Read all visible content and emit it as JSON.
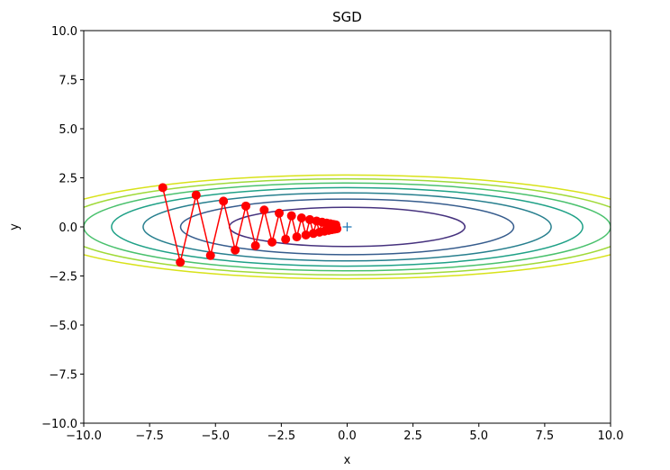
{
  "chart_data": {
    "type": "line",
    "title": "SGD",
    "xlabel": "x",
    "ylabel": "y",
    "xlim": [
      -10,
      10
    ],
    "ylim": [
      -10,
      10
    ],
    "xticks": [
      "−10.0",
      "−7.5",
      "−5.0",
      "−2.5",
      "0.0",
      "2.5",
      "5.0",
      "7.5",
      "10.0"
    ],
    "yticks": [
      "−10.0",
      "−7.5",
      "−5.0",
      "−2.5",
      "0.0",
      "2.5",
      "5.0",
      "7.5",
      "10.0"
    ],
    "xtick_values": [
      -10,
      -7.5,
      -5,
      -2.5,
      0,
      2.5,
      5,
      7.5,
      10
    ],
    "ytick_values": [
      -10,
      -7.5,
      -5,
      -2.5,
      0,
      2.5,
      5,
      7.5,
      10
    ],
    "contour": {
      "function": "x^2/20 + y^2",
      "levels": [
        1,
        2,
        3,
        4,
        5,
        6,
        7
      ],
      "colors": [
        "#46327e",
        "#365c8d",
        "#277f8e",
        "#1fa187",
        "#4ac16d",
        "#a0da39",
        "#d8e219"
      ]
    },
    "minimum_marker": {
      "x": 0,
      "y": 0,
      "color": "#1f77b4"
    },
    "path": {
      "color": "#ff0000",
      "points": [
        [
          -7,
          2
        ],
        [
          -6.335,
          -1.8
        ],
        [
          -5.733,
          1.62
        ],
        [
          -5.189,
          -1.458
        ],
        [
          -4.696,
          1.312
        ],
        [
          -4.25,
          -1.181
        ],
        [
          -3.846,
          1.063
        ],
        [
          -3.481,
          -0.957
        ],
        [
          -3.15,
          0.861
        ],
        [
          -2.851,
          -0.775
        ],
        [
          -2.58,
          0.697
        ],
        [
          -2.335,
          -0.628
        ],
        [
          -2.113,
          0.565
        ],
        [
          -1.912,
          -0.508
        ],
        [
          -1.731,
          0.458
        ],
        [
          -1.566,
          -0.412
        ],
        [
          -1.417,
          0.371
        ],
        [
          -1.283,
          -0.334
        ],
        [
          -1.161,
          0.3
        ],
        [
          -1.051,
          -0.27
        ],
        [
          -0.951,
          0.243
        ],
        [
          -0.86,
          -0.219
        ],
        [
          -0.779,
          0.197
        ],
        [
          -0.705,
          -0.177
        ],
        [
          -0.638,
          0.16
        ],
        [
          -0.577,
          -0.144
        ],
        [
          -0.522,
          0.129
        ],
        [
          -0.473,
          -0.116
        ],
        [
          -0.428,
          0.105
        ],
        [
          -0.387,
          -0.094
        ]
      ]
    }
  }
}
